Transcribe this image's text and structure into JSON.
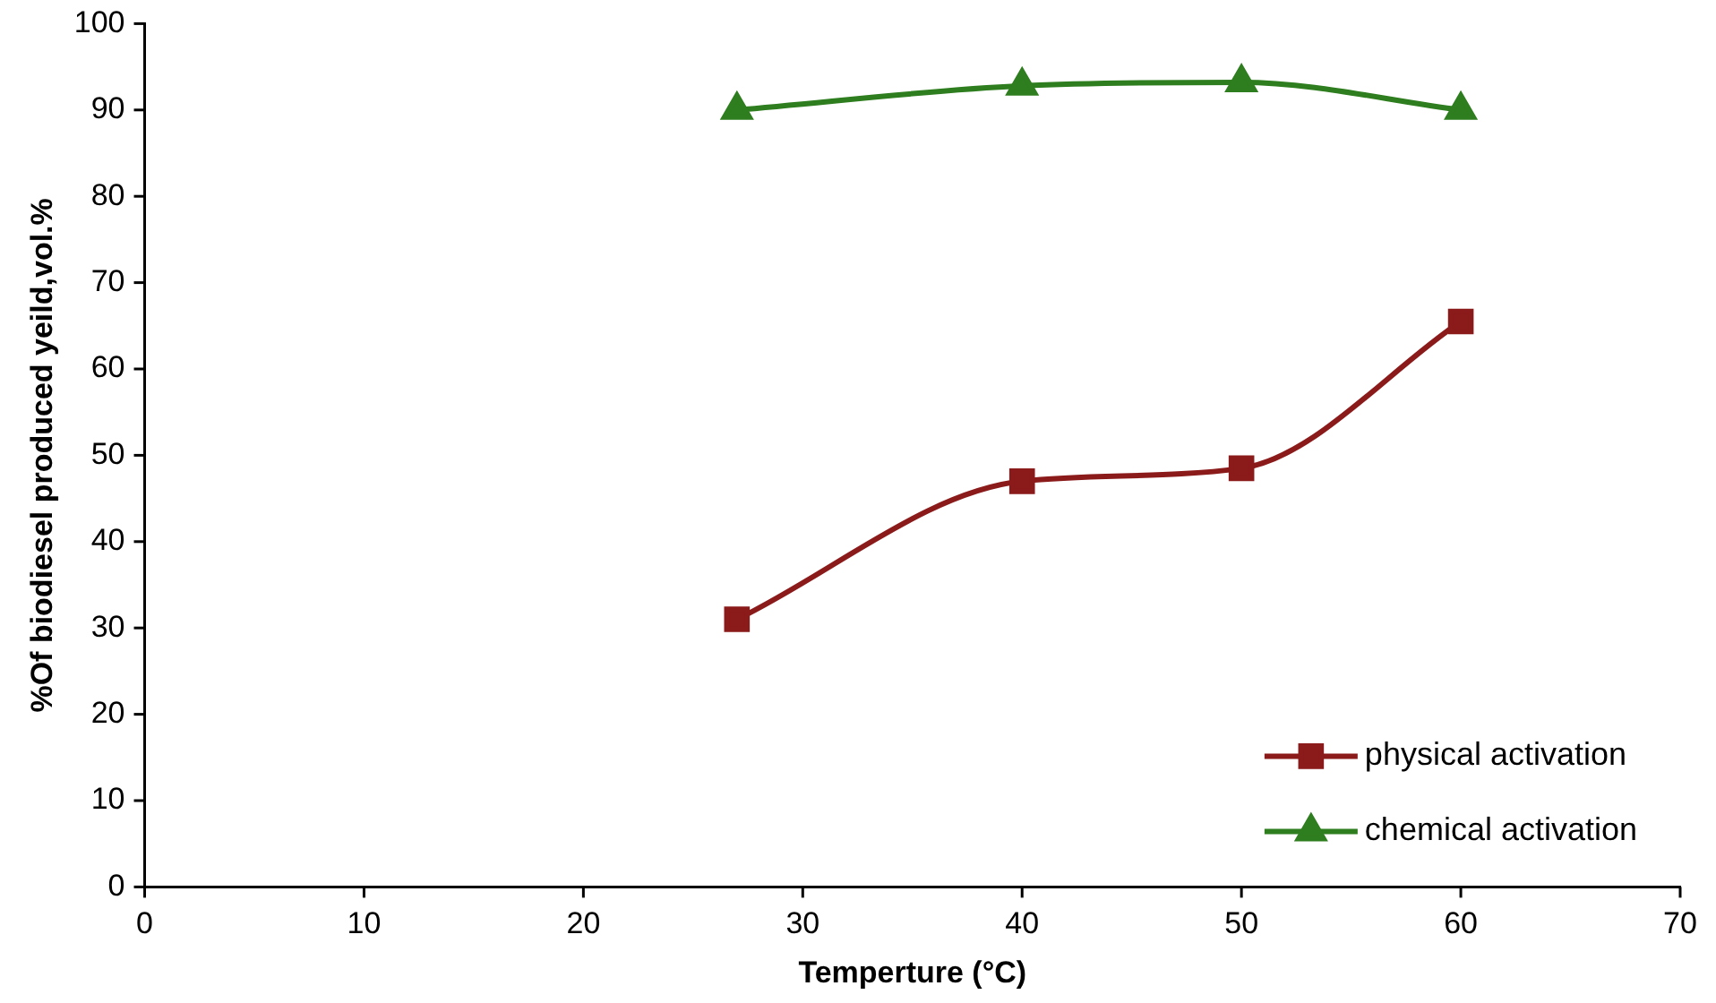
{
  "chart_data": {
    "type": "line",
    "xlabel": "Temperture (°C)",
    "ylabel": "%Of biodiesel produced yeild,vol.%",
    "x": [
      27,
      40,
      50,
      60
    ],
    "series": [
      {
        "name": "physical activation",
        "color": "#8b1a1a",
        "marker": "square",
        "values": [
          31,
          47,
          48.5,
          65.5
        ]
      },
      {
        "name": "chemical activation",
        "color": "#2e7d1e",
        "marker": "triangle",
        "values": [
          90,
          92.8,
          93.2,
          90
        ]
      }
    ],
    "xlim": [
      0,
      70
    ],
    "xticks": [
      0,
      10,
      20,
      30,
      40,
      50,
      60,
      70
    ],
    "ylim": [
      0,
      100
    ],
    "yticks": [
      0,
      10,
      20,
      30,
      40,
      50,
      60,
      70,
      80,
      90,
      100
    ],
    "grid": false,
    "legend": "bottom right",
    "line_style": "solid"
  }
}
